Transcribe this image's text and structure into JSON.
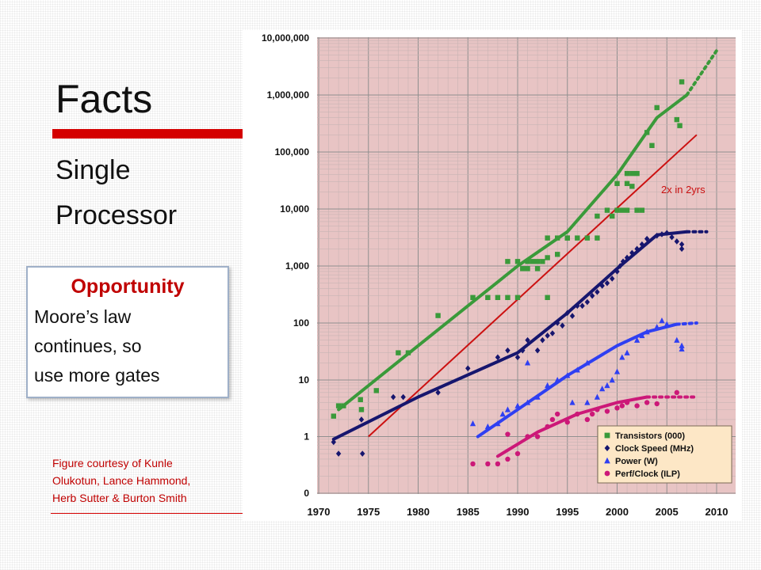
{
  "slide": {
    "title": "Facts",
    "bullets": [
      "Single",
      "Processor"
    ],
    "callout_title": "Opportunity",
    "callout_lines": [
      "Moore’s law",
      "continues, so",
      "use more gates"
    ],
    "credit_lines": [
      "Figure courtesy of Kunle",
      "Olukotun, Lance Hammond,",
      "Herb Sutter & Burton Smith"
    ],
    "colors": {
      "title_rule": "#d40000",
      "callout_title": "#c00000",
      "credit_text": "#c00000"
    }
  },
  "chart_data": {
    "type": "scatter",
    "title": "",
    "xlabel": "",
    "ylabel": "",
    "y_scale": "log",
    "xlim": [
      1970,
      2010
    ],
    "x_ticks": [
      "1970",
      "1975",
      "1980",
      "1985",
      "1990",
      "1995",
      "2000",
      "2005",
      "2010"
    ],
    "y_ticks": [
      "0",
      "1",
      "10",
      "100",
      "1,000",
      "10,000",
      "100,000",
      "1,000,000",
      "10,000,000"
    ],
    "grid": true,
    "legend_position": "bottom-right",
    "background_color": "#e8c4c4",
    "series": [
      {
        "name": "Transistors (000)",
        "color": "#3a9a3a",
        "marker": "square",
        "points": [
          [
            1971.5,
            2.3
          ],
          [
            1972,
            3.5
          ],
          [
            1972.5,
            3.5
          ],
          [
            1974.2,
            4.5
          ],
          [
            1974.3,
            3
          ],
          [
            1975.8,
            6.5
          ],
          [
            1978,
            30
          ],
          [
            1979,
            30
          ],
          [
            1982,
            135
          ],
          [
            1985.5,
            280
          ],
          [
            1987,
            280
          ],
          [
            1988,
            280
          ],
          [
            1989,
            280
          ],
          [
            1989,
            1200
          ],
          [
            1990,
            1200
          ],
          [
            1990,
            280
          ],
          [
            1990.5,
            900
          ],
          [
            1991,
            1200
          ],
          [
            1991,
            900
          ],
          [
            1991.5,
            1200
          ],
          [
            1992,
            1200
          ],
          [
            1992,
            900
          ],
          [
            1992.5,
            1200
          ],
          [
            1993,
            1400
          ],
          [
            1993,
            280
          ],
          [
            1993,
            3100
          ],
          [
            1994,
            1600
          ],
          [
            1994,
            3100
          ],
          [
            1995,
            3100
          ],
          [
            1995,
            3100
          ],
          [
            1996,
            3100
          ],
          [
            1997,
            3100
          ],
          [
            1998,
            3100
          ],
          [
            1998,
            7500
          ],
          [
            1999,
            9500
          ],
          [
            1999.5,
            7500
          ],
          [
            2000,
            9500
          ],
          [
            2000,
            28000
          ],
          [
            2000.5,
            9500
          ],
          [
            2001,
            28000
          ],
          [
            2001,
            9500
          ],
          [
            2001,
            42000
          ],
          [
            2001.5,
            42000
          ],
          [
            2001.5,
            25000
          ],
          [
            2002,
            42000
          ],
          [
            2002,
            9500
          ],
          [
            2002.5,
            9500
          ],
          [
            2003,
            220000
          ],
          [
            2003.5,
            130000
          ],
          [
            2004,
            600000
          ],
          [
            2006,
            370000
          ],
          [
            2006.3,
            290000
          ],
          [
            2006.5,
            1700000
          ]
        ],
        "trend": {
          "solid": [
            [
              1972,
              3
            ],
            [
              1980,
              40
            ],
            [
              1990,
              1000
            ],
            [
              1995,
              4000
            ],
            [
              2000,
              40000
            ],
            [
              2004,
              400000
            ],
            [
              2007,
              1000000
            ]
          ],
          "dotted": [
            [
              2007,
              1000000
            ],
            [
              2010,
              6000000
            ]
          ]
        }
      },
      {
        "name": "Clock Speed (MHz)",
        "color": "#16166e",
        "marker": "diamond",
        "points": [
          [
            1971.5,
            0.8
          ],
          [
            1972,
            0.5
          ],
          [
            1974.3,
            2
          ],
          [
            1974.4,
            0.5
          ],
          [
            1977.5,
            5
          ],
          [
            1978.5,
            5
          ],
          [
            1982,
            6
          ],
          [
            1985,
            16
          ],
          [
            1988,
            25
          ],
          [
            1989,
            33
          ],
          [
            1990,
            25
          ],
          [
            1990.5,
            33
          ],
          [
            1991,
            50
          ],
          [
            1992,
            33
          ],
          [
            1992.5,
            50
          ],
          [
            1993,
            60
          ],
          [
            1993.5,
            66
          ],
          [
            1994,
            100
          ],
          [
            1994.5,
            90
          ],
          [
            1995,
            150
          ],
          [
            1995.5,
            133
          ],
          [
            1996,
            200
          ],
          [
            1996.5,
            200
          ],
          [
            1997,
            233
          ],
          [
            1997.5,
            300
          ],
          [
            1998,
            350
          ],
          [
            1998.5,
            450
          ],
          [
            1999,
            500
          ],
          [
            1999.5,
            600
          ],
          [
            2000,
            800
          ],
          [
            2000.3,
            1000
          ],
          [
            2000.6,
            1200
          ],
          [
            2001,
            1400
          ],
          [
            2001.5,
            1700
          ],
          [
            2002,
            2000
          ],
          [
            2002.5,
            2400
          ],
          [
            2003,
            3000
          ],
          [
            2004,
            3400
          ],
          [
            2004.5,
            3600
          ],
          [
            2005,
            3800
          ],
          [
            2005.5,
            3200
          ],
          [
            2006,
            2700
          ],
          [
            2006.5,
            2400
          ],
          [
            2006.5,
            2000
          ]
        ],
        "trend": {
          "solid": [
            [
              1971.5,
              0.9
            ],
            [
              1980,
              5
            ],
            [
              1990,
              30
            ],
            [
              1995,
              150
            ],
            [
              2000,
              900
            ],
            [
              2004,
              3500
            ],
            [
              2007,
              4000
            ]
          ],
          "dotted": [
            [
              2007,
              4000
            ],
            [
              2009,
              4000
            ]
          ]
        }
      },
      {
        "name": "Power (W)",
        "color": "#2f3ff2",
        "marker": "triangle",
        "points": [
          [
            1985.5,
            1.7
          ],
          [
            1987,
            1.5
          ],
          [
            1988,
            1.7
          ],
          [
            1988.5,
            2.5
          ],
          [
            1989,
            3
          ],
          [
            1990,
            3.5
          ],
          [
            1991,
            4
          ],
          [
            1991,
            20
          ],
          [
            1992,
            5
          ],
          [
            1993,
            8
          ],
          [
            1994,
            10
          ],
          [
            1995,
            12
          ],
          [
            1995.5,
            4
          ],
          [
            1996,
            15
          ],
          [
            1997,
            20
          ],
          [
            1997,
            4
          ],
          [
            1998,
            5
          ],
          [
            1998.5,
            7
          ],
          [
            1999,
            8
          ],
          [
            1999.5,
            10
          ],
          [
            2000,
            14
          ],
          [
            2000.5,
            25
          ],
          [
            2001,
            30
          ],
          [
            2002,
            50
          ],
          [
            2002.5,
            60
          ],
          [
            2003,
            70
          ],
          [
            2004,
            85
          ],
          [
            2004.5,
            110
          ],
          [
            2005,
            95
          ],
          [
            2006,
            50
          ],
          [
            2006.5,
            40
          ],
          [
            2006.5,
            35
          ]
        ],
        "trend": {
          "solid": [
            [
              1986,
              1
            ],
            [
              1990,
              3
            ],
            [
              1995,
              12
            ],
            [
              2000,
              40
            ],
            [
              2003,
              70
            ],
            [
              2006,
              95
            ]
          ],
          "dotted": [
            [
              2006,
              95
            ],
            [
              2008,
              100
            ]
          ]
        }
      },
      {
        "name": "Perf/Clock (ILP)",
        "color": "#cc1878",
        "marker": "circle",
        "points": [
          [
            1985.5,
            0.33
          ],
          [
            1987,
            0.33
          ],
          [
            1988,
            0.33
          ],
          [
            1989,
            0.4
          ],
          [
            1989,
            1.1
          ],
          [
            1990,
            0.5
          ],
          [
            1991,
            1
          ],
          [
            1992,
            1
          ],
          [
            1993,
            1.5
          ],
          [
            1993.5,
            2
          ],
          [
            1994,
            2.5
          ],
          [
            1995,
            1.8
          ],
          [
            1996,
            2.5
          ],
          [
            1997,
            2
          ],
          [
            1997.5,
            2.5
          ],
          [
            1998,
            3
          ],
          [
            1999,
            2.8
          ],
          [
            2000,
            3.2
          ],
          [
            2000.5,
            3.5
          ],
          [
            2001,
            4
          ],
          [
            2002,
            3.5
          ],
          [
            2003,
            4
          ],
          [
            2004,
            3.8
          ],
          [
            2006,
            6
          ]
        ],
        "trend": {
          "solid": [
            [
              1988,
              0.45
            ],
            [
              1992,
              1.2
            ],
            [
              1996,
              2.5
            ],
            [
              2000,
              4
            ],
            [
              2003,
              5
            ]
          ],
          "dotted": [
            [
              2003,
              5
            ],
            [
              2008,
              5
            ]
          ]
        }
      }
    ],
    "reference_line": {
      "label": "2x in 2yrs",
      "color": "#cc1111",
      "from": [
        1975,
        1
      ],
      "to": [
        2008,
        200000
      ]
    }
  }
}
